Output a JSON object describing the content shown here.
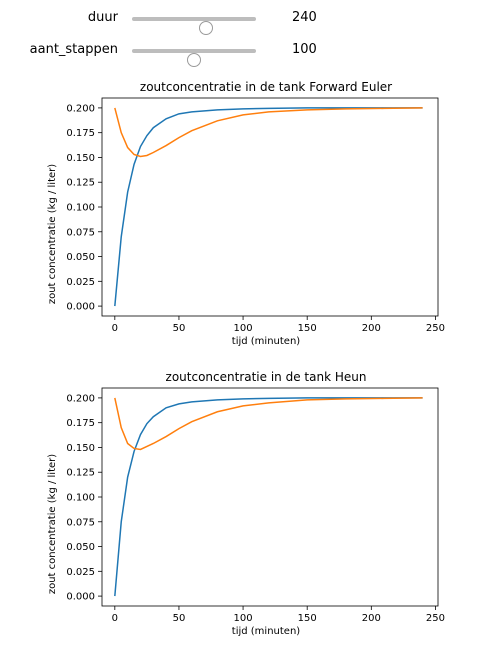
{
  "controls": {
    "duur": {
      "label": "duur",
      "value": "240",
      "min": 0,
      "max": 400,
      "level": 240
    },
    "aant_stappen": {
      "label": "aant_stappen",
      "value": "100",
      "min": 0,
      "max": 200,
      "level": 100
    }
  },
  "colors": {
    "series1": "#1f77b4",
    "series2": "#ff7f0e"
  },
  "chart_data": [
    {
      "type": "line",
      "title": "zoutconcentratie in de tank Forward Euler",
      "xlabel": "tijd (minuten)",
      "ylabel": "zout concentratie (kg / liter)",
      "xlim": [
        -10,
        252
      ],
      "ylim": [
        -0.01,
        0.21
      ],
      "xticks": [
        0,
        50,
        100,
        150,
        200,
        250
      ],
      "xtick_labels": [
        "0",
        "50",
        "100",
        "150",
        "200",
        "250"
      ],
      "yticks": [
        0,
        0.025,
        0.05,
        0.075,
        0.1,
        0.125,
        0.15,
        0.175,
        0.2
      ],
      "ytick_labels": [
        "0.000",
        "0.025",
        "0.050",
        "0.075",
        "0.100",
        "0.125",
        "0.150",
        "0.175",
        "0.200"
      ],
      "grid": false,
      "series": [
        {
          "x": [
            0,
            5,
            10,
            15,
            20,
            25,
            30,
            40,
            50,
            60,
            80,
            100,
            120,
            150,
            180,
            210,
            240
          ],
          "values": [
            0.0,
            0.07,
            0.115,
            0.143,
            0.161,
            0.172,
            0.18,
            0.189,
            0.194,
            0.196,
            0.198,
            0.199,
            0.1995,
            0.2,
            0.2,
            0.2,
            0.2
          ]
        },
        {
          "x": [
            0,
            5,
            10,
            15,
            20,
            25,
            30,
            40,
            50,
            60,
            80,
            100,
            120,
            150,
            180,
            210,
            240
          ],
          "values": [
            0.2,
            0.175,
            0.16,
            0.153,
            0.151,
            0.152,
            0.155,
            0.162,
            0.17,
            0.177,
            0.187,
            0.193,
            0.196,
            0.198,
            0.199,
            0.1995,
            0.2
          ]
        }
      ]
    },
    {
      "type": "line",
      "title": "zoutconcentratie in de tank Heun",
      "xlabel": "tijd (minuten)",
      "ylabel": "zout concentratie (kg / liter)",
      "xlim": [
        -10,
        252
      ],
      "ylim": [
        -0.01,
        0.21
      ],
      "xticks": [
        0,
        50,
        100,
        150,
        200,
        250
      ],
      "xtick_labels": [
        "0",
        "50",
        "100",
        "150",
        "200",
        "250"
      ],
      "yticks": [
        0,
        0.025,
        0.05,
        0.075,
        0.1,
        0.125,
        0.15,
        0.175,
        0.2
      ],
      "ytick_labels": [
        "0.000",
        "0.025",
        "0.050",
        "0.075",
        "0.100",
        "0.125",
        "0.150",
        "0.175",
        "0.200"
      ],
      "grid": false,
      "series": [
        {
          "x": [
            0,
            5,
            10,
            15,
            20,
            25,
            30,
            40,
            50,
            60,
            80,
            100,
            120,
            150,
            180,
            210,
            240
          ],
          "values": [
            0.0,
            0.075,
            0.12,
            0.146,
            0.163,
            0.174,
            0.181,
            0.19,
            0.194,
            0.196,
            0.198,
            0.199,
            0.1995,
            0.2,
            0.2,
            0.2,
            0.2
          ]
        },
        {
          "x": [
            0,
            5,
            10,
            15,
            20,
            25,
            30,
            40,
            50,
            60,
            80,
            100,
            120,
            150,
            180,
            210,
            240
          ],
          "values": [
            0.2,
            0.17,
            0.154,
            0.149,
            0.148,
            0.151,
            0.154,
            0.161,
            0.169,
            0.176,
            0.186,
            0.192,
            0.195,
            0.198,
            0.199,
            0.1995,
            0.2
          ]
        }
      ]
    }
  ]
}
